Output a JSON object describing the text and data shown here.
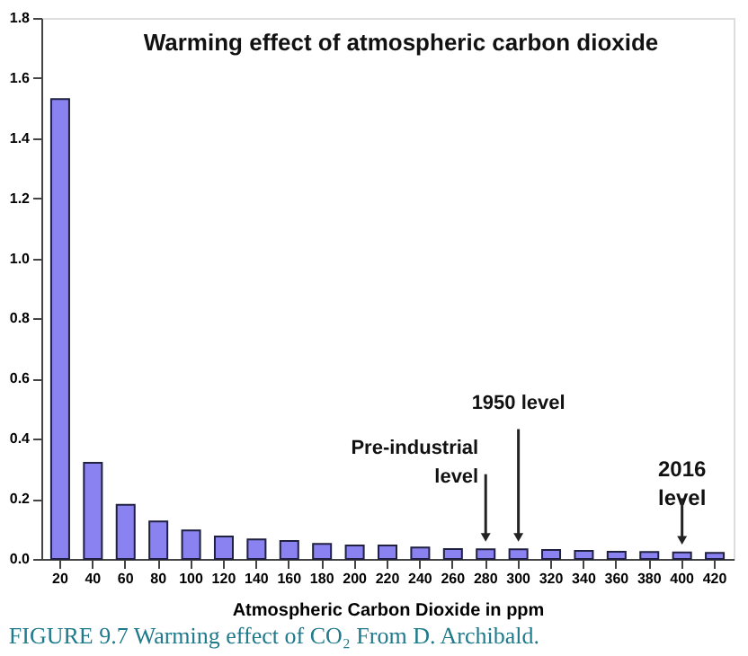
{
  "chart_data": {
    "type": "bar",
    "title": "Warming effect of atmospheric carbon dioxide",
    "xlabel": "Atmospheric Carbon Dioxide in ppm",
    "categories": [
      "20",
      "40",
      "60",
      "80",
      "100",
      "120",
      "140",
      "160",
      "180",
      "200",
      "220",
      "240",
      "260",
      "280",
      "300",
      "320",
      "340",
      "360",
      "380",
      "400",
      "420"
    ],
    "series": [
      {
        "color": "#8a82f0",
        "values": [
          1.53,
          0.32,
          0.18,
          0.125,
          0.095,
          0.075,
          0.065,
          0.06,
          0.05,
          0.045,
          0.045,
          0.038,
          0.033,
          0.032,
          0.032,
          0.03,
          0.027,
          0.024,
          0.023,
          0.022,
          0.02
        ]
      }
    ],
    "ylim": [
      0,
      1.8
    ],
    "yticks": [
      {
        "value": 0,
        "label": "0.0"
      },
      0.2,
      0.4,
      0.6,
      0.8,
      {
        "value": 1,
        "label": "1.0"
      },
      1.2,
      1.4,
      1.6,
      1.8
    ],
    "grid": false,
    "annotations": [
      {
        "text": "Pre-industrial\nlevel",
        "x": "280",
        "y": 0.032
      },
      {
        "text": "1950 level",
        "x": "300",
        "y": 0.032
      },
      {
        "text": "2016\nlevel",
        "x": "400",
        "y": 0.022
      },
      "FIGURE 9.7 Warming effect of CO₂ From D. Archibald."
    ]
  }
}
